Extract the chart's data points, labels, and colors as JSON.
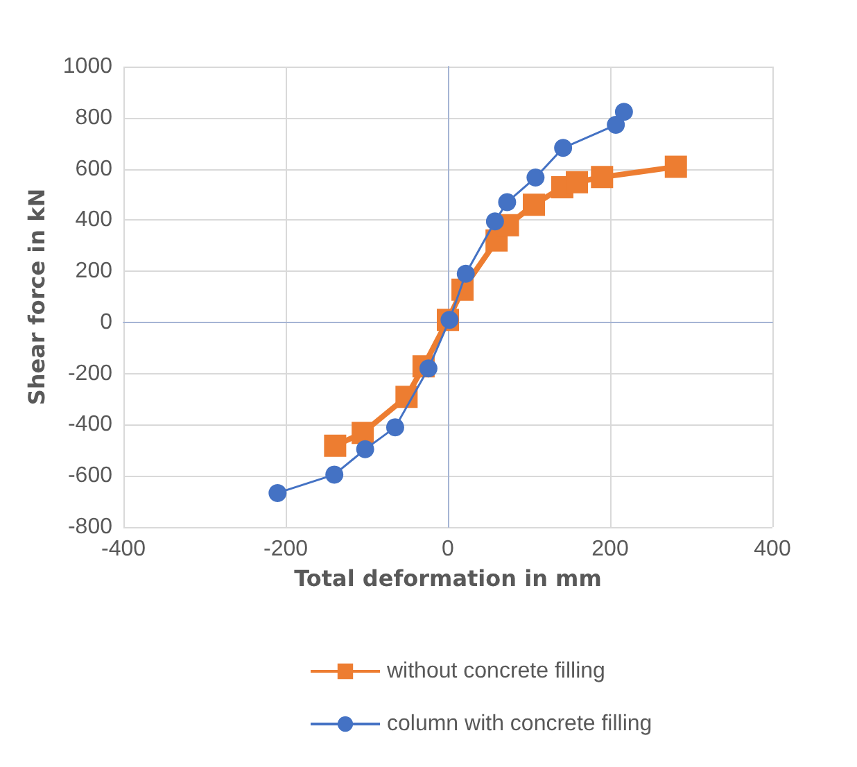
{
  "chart_data": {
    "type": "line",
    "xlabel": "Total deformation in mm",
    "ylabel": "Shear force in kN",
    "series": [
      {
        "name": "without concrete filling",
        "color": "#ed7d31",
        "marker": "square",
        "x": [
          -139,
          -105,
          -51,
          -30,
          0,
          18,
          60,
          74,
          106,
          141,
          159,
          190,
          281
        ],
        "values": [
          -482,
          -432,
          -291,
          -172,
          10,
          128,
          320,
          380,
          460,
          528,
          548,
          568,
          608
        ]
      },
      {
        "name": "column with concrete filling",
        "color": "#4472c4",
        "marker": "circle",
        "x": [
          -210,
          -140,
          -102,
          -65,
          -24,
          2,
          22,
          58,
          73,
          108,
          142,
          207,
          217
        ],
        "values": [
          -667,
          -595,
          -496,
          -410,
          -180,
          10,
          190,
          395,
          470,
          566,
          682,
          772,
          823
        ]
      }
    ],
    "xlim": [
      -400,
      400
    ],
    "xticks": [
      -400,
      -200,
      0,
      200,
      400
    ],
    "ylim": [
      -800,
      1000
    ],
    "yticks": [
      -800,
      -600,
      -400,
      -200,
      0,
      200,
      400,
      600,
      800,
      1000
    ],
    "grid": true,
    "legend": "bottom"
  }
}
